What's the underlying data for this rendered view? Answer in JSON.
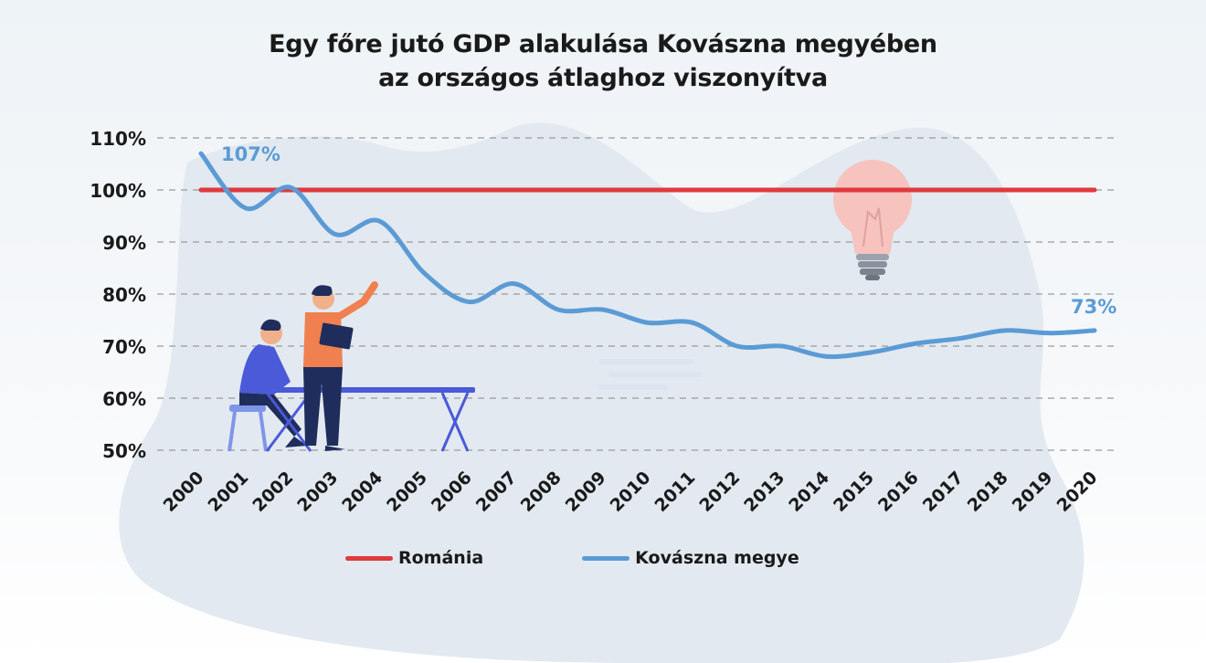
{
  "title_line1": "Egy főre jutó GDP alakulása Kovászna megyében",
  "title_line2": "az országos átlaghoz viszonyítva",
  "colors": {
    "romania": "#e0393e",
    "kovaszna": "#5b9bd5",
    "grid": "#9a9a9a",
    "blob": "#dfe6ee",
    "text": "#1a1a1a"
  },
  "chart_data": {
    "type": "line",
    "categories": [
      "2000",
      "2001",
      "2002",
      "2003",
      "2004",
      "2005",
      "2006",
      "2007",
      "2008",
      "2009",
      "2010",
      "2011",
      "2012",
      "2013",
      "2014",
      "2015",
      "2016",
      "2017",
      "2018",
      "2019",
      "2020"
    ],
    "y_ticks": [
      "50%",
      "60%",
      "70%",
      "80%",
      "90%",
      "100%",
      "110%"
    ],
    "ylim": [
      50,
      110
    ],
    "grid": true,
    "legend_position": "bottom",
    "series": [
      {
        "name": "Románia",
        "values": [
          100,
          100,
          100,
          100,
          100,
          100,
          100,
          100,
          100,
          100,
          100,
          100,
          100,
          100,
          100,
          100,
          100,
          100,
          100,
          100,
          100
        ]
      },
      {
        "name": "Kovászna megye",
        "values": [
          107,
          96.5,
          100.5,
          91.5,
          94,
          84,
          78.5,
          82,
          77,
          77,
          74.5,
          74.5,
          70,
          70,
          68,
          68.8,
          70.5,
          71.5,
          73,
          72.5,
          73
        ]
      }
    ],
    "annotations": [
      {
        "label": "107%",
        "category": "2000",
        "value": 107
      },
      {
        "label": "73%",
        "category": "2020",
        "value": 73
      }
    ]
  },
  "legend": {
    "romania": "Románia",
    "kovaszna": "Kovászna megye"
  }
}
